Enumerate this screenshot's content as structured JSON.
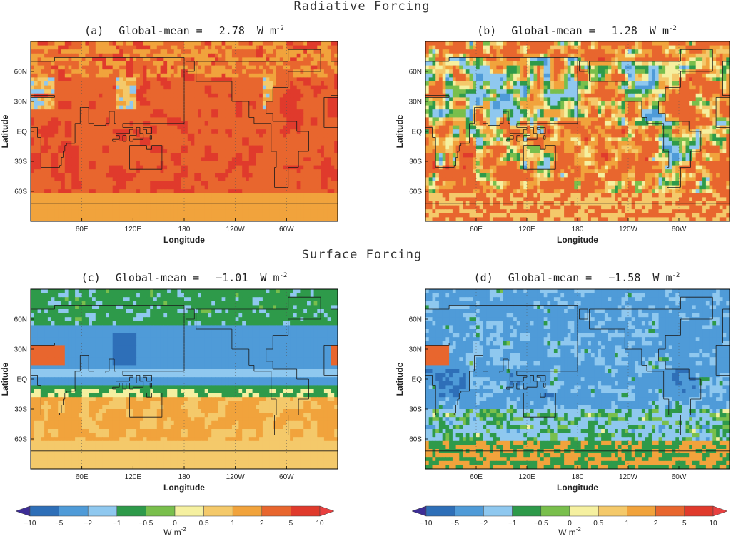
{
  "section_titles": {
    "top": "Radiative Forcing",
    "bottom": "Surface  Forcing"
  },
  "chart_data": [
    {
      "id": "a",
      "type": "heatmap",
      "label": "(a)",
      "title_prefix": "Global-mean =",
      "global_mean": "2.78",
      "units": "W m",
      "units_exp": "-2",
      "xlabel": "Longitude",
      "ylabel": "Latitude",
      "xticks": [
        "60E",
        "120E",
        "180",
        "120W",
        "60W"
      ],
      "yticks": [
        "60N",
        "30N",
        "EQ",
        "30S",
        "60S"
      ],
      "pattern": "mostly-positive"
    },
    {
      "id": "b",
      "type": "heatmap",
      "label": "(b)",
      "title_prefix": "Global-mean =",
      "global_mean": "1.28",
      "units": "W m",
      "units_exp": "-2",
      "xlabel": "Longitude",
      "ylabel": "Latitude",
      "xticks": [
        "60E",
        "120E",
        "180",
        "120W",
        "60W"
      ],
      "yticks": [
        "60N",
        "30N",
        "EQ",
        "30S",
        "60S"
      ],
      "pattern": "mixed-positive"
    },
    {
      "id": "c",
      "type": "heatmap",
      "label": "(c)",
      "title_prefix": "Global-mean =",
      "global_mean": "−1.01",
      "units": "W m",
      "units_exp": "-2",
      "xlabel": "Longitude",
      "ylabel": "Latitude",
      "xticks": [
        "60E",
        "120E",
        "180",
        "120W",
        "60W"
      ],
      "yticks": [
        "60N",
        "30N",
        "EQ",
        "30S",
        "60S"
      ],
      "pattern": "north-negative-south-positive"
    },
    {
      "id": "d",
      "type": "heatmap",
      "label": "(d)",
      "title_prefix": "Global-mean =",
      "global_mean": "−1.58",
      "units": "W m",
      "units_exp": "-2",
      "xlabel": "Longitude",
      "ylabel": "Latitude",
      "xticks": [
        "60E",
        "120E",
        "180",
        "120W",
        "60W"
      ],
      "yticks": [
        "60N",
        "30N",
        "EQ",
        "30S",
        "60S"
      ],
      "pattern": "mixed-negative"
    }
  ],
  "colorbar": {
    "ticks": [
      "−10",
      "−5",
      "−2",
      "−1",
      "−0.5",
      "0",
      "0.5",
      "1",
      "2",
      "5",
      "10"
    ],
    "colors": [
      "#3d2d95",
      "#2e6fb8",
      "#4f9bd8",
      "#8fc8ef",
      "#2e9a4a",
      "#79bf4c",
      "#f5f0a0",
      "#f4c96a",
      "#f1a33c",
      "#e8662e",
      "#e03a2c",
      "#e84040"
    ],
    "units": "W m",
    "units_exp": "-2"
  },
  "colors": {
    "coastline": "#1a1a1a",
    "frame": "#000000"
  }
}
